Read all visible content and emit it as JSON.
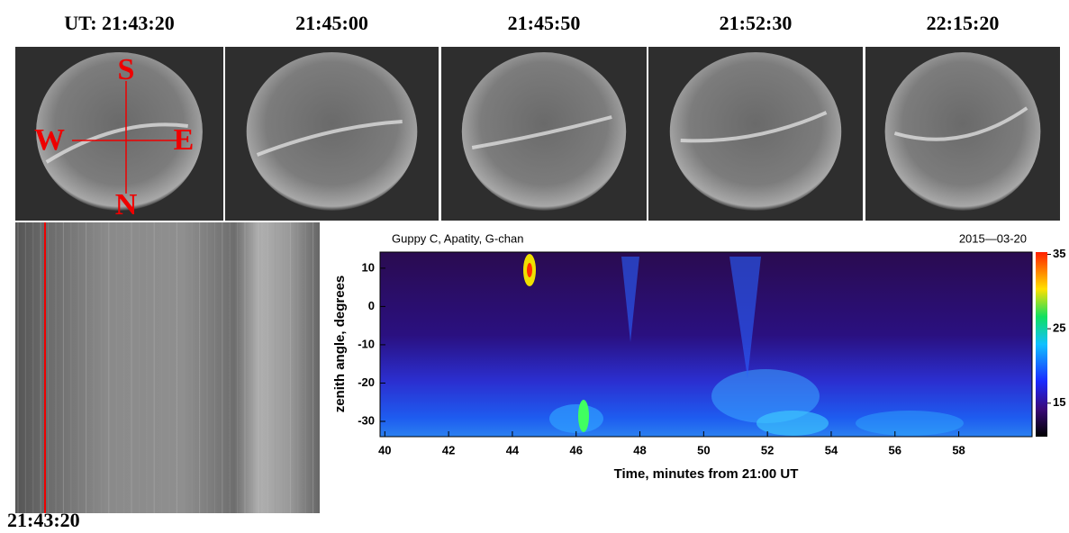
{
  "frames": [
    {
      "time": "UT: 21:43:20"
    },
    {
      "time": "21:45:00"
    },
    {
      "time": "21:45:50"
    },
    {
      "time": "21:52:30"
    },
    {
      "time": "22:15:20"
    }
  ],
  "compass": {
    "south": "S",
    "west": "W",
    "east": "E",
    "north": "N"
  },
  "keogram": {
    "time": "21:43:20"
  },
  "chart_data": {
    "type": "heatmap",
    "title": "Guppy C, Apatity, G-chan",
    "date": "2015—03-20",
    "x_label": "Time, minutes from 21:00 UT",
    "y_label": "zenith angle, degrees",
    "xlim": [
      39.85,
      60.3
    ],
    "xticks": [
      40,
      42,
      44,
      46,
      48,
      50,
      52,
      54,
      56,
      58
    ],
    "ylim": [
      -34,
      14.2
    ],
    "yticks": [
      -30,
      -20,
      -10,
      0,
      10
    ],
    "clim": [
      10.5,
      35.3
    ],
    "cticks": [
      15,
      25,
      35
    ]
  }
}
